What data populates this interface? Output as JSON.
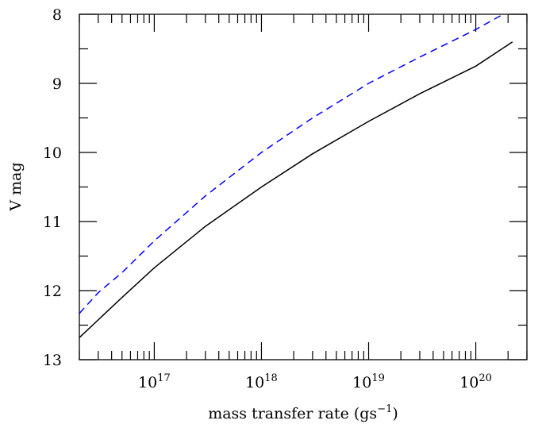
{
  "chart_data": {
    "type": "line",
    "title": "",
    "xlabel": "mass transfer rate (gs",
    "xlabel_sup": "−1",
    "xlabel_close": ")",
    "ylabel": "V mag",
    "x_scale": "log",
    "xlim": [
      2e+16,
      3e+20
    ],
    "ylim": [
      13,
      8
    ],
    "y_inverted": true,
    "grid": false,
    "legend": "none",
    "x_ticks": [
      {
        "value": 1e+17,
        "base": "10",
        "exp": "17"
      },
      {
        "value": 1e+18,
        "base": "10",
        "exp": "18"
      },
      {
        "value": 1e+19,
        "base": "10",
        "exp": "19"
      },
      {
        "value": 1e+20,
        "base": "10",
        "exp": "20"
      }
    ],
    "y_ticks": [
      "8",
      "9",
      "10",
      "11",
      "12",
      "13"
    ],
    "series": [
      {
        "style": "solid",
        "color": "#000000",
        "x": [
          2e+16,
          5e+16,
          1e+17,
          3e+17,
          1e+18,
          3e+18,
          1e+19,
          3e+19,
          1e+20,
          2.2e+20
        ],
        "y": [
          12.68,
          12.1,
          11.67,
          11.07,
          10.5,
          10.02,
          9.55,
          9.15,
          8.75,
          8.4
        ]
      },
      {
        "style": "dashed",
        "color": "#0000ff",
        "x": [
          2e+16,
          3e+16,
          5e+16,
          1e+17,
          3e+17,
          1e+18,
          3e+18,
          1e+19,
          3e+19,
          1e+20,
          1.8e+20
        ],
        "y": [
          12.33,
          12.03,
          11.74,
          11.28,
          10.63,
          10.0,
          9.5,
          9.0,
          8.62,
          8.22,
          8.0
        ]
      }
    ],
    "colors": {
      "axis": "#000000",
      "solid": "#000000",
      "dashed": "#0000ff"
    }
  }
}
